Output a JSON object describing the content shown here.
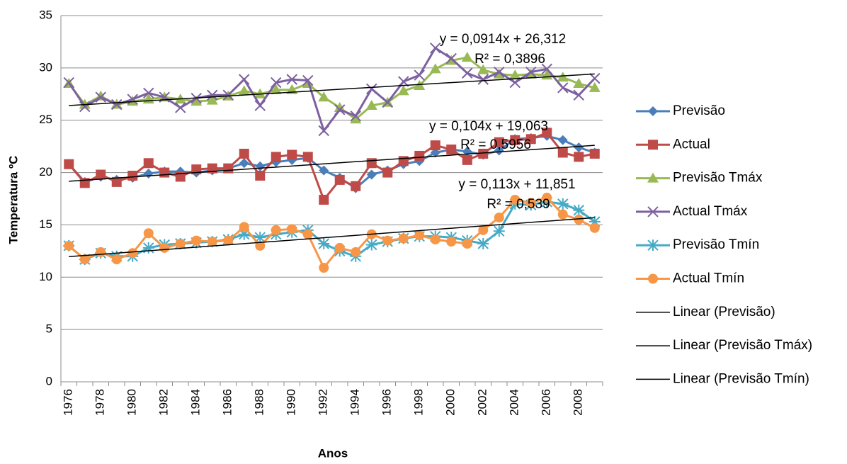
{
  "chart_data": {
    "type": "line",
    "x_label": "Anos",
    "y_label": "Temperatura ºC",
    "categories": [
      "1976",
      null,
      "1978",
      null,
      "1980",
      null,
      "1982",
      null,
      "1984",
      null,
      "1986",
      null,
      "1988",
      null,
      "1990",
      null,
      "1992",
      null,
      "1994",
      null,
      "1996",
      null,
      "1998",
      null,
      "2000",
      null,
      "2002",
      null,
      "2004",
      null,
      "2006",
      null,
      "2008",
      null
    ],
    "ylim": [
      0,
      35
    ],
    "yticks": [
      0,
      5,
      10,
      15,
      20,
      25,
      30,
      35
    ],
    "grid": true,
    "legend": "right",
    "series": [
      {
        "name": "Previsão",
        "color": "#4a7ebb",
        "marker": "diamond",
        "values": [
          20.8,
          19.1,
          19.6,
          19.3,
          19.5,
          19.9,
          20.1,
          20.1,
          20.0,
          20.2,
          20.4,
          20.9,
          20.6,
          21.0,
          21.2,
          21.4,
          20.2,
          19.5,
          18.5,
          19.8,
          20.2,
          20.8,
          21.1,
          21.9,
          22.2,
          22.0,
          21.7,
          22.1,
          23.2,
          23.3,
          23.5,
          23.1,
          22.4,
          21.9
        ]
      },
      {
        "name": "Actual",
        "color": "#be4b48",
        "marker": "square",
        "values": [
          20.8,
          19.0,
          19.8,
          19.1,
          19.7,
          20.9,
          20.0,
          19.6,
          20.3,
          20.4,
          20.4,
          21.8,
          19.7,
          21.5,
          21.7,
          21.5,
          17.4,
          19.3,
          18.7,
          20.9,
          20.0,
          21.1,
          21.6,
          22.6,
          22.2,
          21.2,
          21.8,
          22.9,
          23.1,
          23.2,
          23.8,
          21.9,
          21.5,
          21.8
        ]
      },
      {
        "name": "Previsão Tmáx",
        "color": "#98b954",
        "marker": "triangle",
        "values": [
          28.5,
          26.5,
          27.3,
          26.5,
          26.8,
          27.0,
          27.2,
          27.0,
          26.8,
          26.9,
          27.3,
          27.8,
          27.5,
          27.9,
          27.9,
          28.5,
          27.2,
          26.2,
          25.1,
          26.4,
          26.7,
          27.8,
          28.3,
          29.9,
          30.7,
          31.0,
          29.8,
          29.4,
          29.3,
          29.4,
          29.3,
          29.1,
          28.5,
          28.1
        ]
      },
      {
        "name": "Actual Tmáx",
        "color": "#7d60a0",
        "marker": "x",
        "values": [
          28.6,
          26.3,
          27.2,
          26.5,
          27.0,
          27.6,
          27.2,
          26.2,
          27.1,
          27.4,
          27.4,
          28.9,
          26.4,
          28.6,
          28.9,
          28.8,
          24.0,
          26.0,
          25.4,
          28.0,
          26.7,
          28.7,
          29.3,
          31.9,
          30.9,
          29.5,
          28.9,
          29.6,
          28.6,
          29.6,
          29.9,
          28.1,
          27.4,
          29.0
        ]
      },
      {
        "name": "Previsão Tmín",
        "color": "#46aac5",
        "marker": "star",
        "values": [
          13.0,
          11.7,
          12.3,
          12.0,
          12.0,
          12.8,
          13.1,
          13.2,
          13.3,
          13.4,
          13.6,
          14.1,
          13.8,
          14.1,
          14.3,
          14.5,
          13.2,
          12.5,
          12.0,
          13.1,
          13.4,
          13.7,
          13.9,
          13.9,
          13.8,
          13.5,
          13.2,
          14.4,
          17.0,
          16.9,
          17.2,
          17.0,
          16.4,
          15.3
        ]
      },
      {
        "name": "Actual Tmín",
        "color": "#f79646",
        "marker": "circle",
        "values": [
          13.0,
          11.7,
          12.4,
          11.7,
          12.3,
          14.2,
          12.8,
          13.2,
          13.5,
          13.4,
          13.5,
          14.8,
          13.0,
          14.5,
          14.6,
          14.1,
          10.9,
          12.8,
          12.4,
          14.1,
          13.5,
          13.7,
          14.0,
          13.6,
          13.4,
          13.2,
          14.5,
          15.7,
          17.4,
          17.1,
          17.6,
          16.0,
          15.5,
          14.7
        ]
      }
    ],
    "trendlines": [
      {
        "name": "Linear (Previsão)",
        "color": "#000000",
        "slope": 0.104,
        "intercept": 19.063,
        "equation": "y = 0,104x + 19,063",
        "r2": "R² = 0,5956"
      },
      {
        "name": "Linear (Previsão Tmáx)",
        "color": "#000000",
        "slope": 0.0914,
        "intercept": 26.312,
        "equation": "y = 0,0914x + 26,312",
        "r2": "R² = 0,3896"
      },
      {
        "name": "Linear (Previsão Tmín)",
        "color": "#000000",
        "slope": 0.113,
        "intercept": 11.851,
        "equation": "y = 0,113x + 11,851",
        "r2": "R² = 0,539"
      }
    ]
  }
}
